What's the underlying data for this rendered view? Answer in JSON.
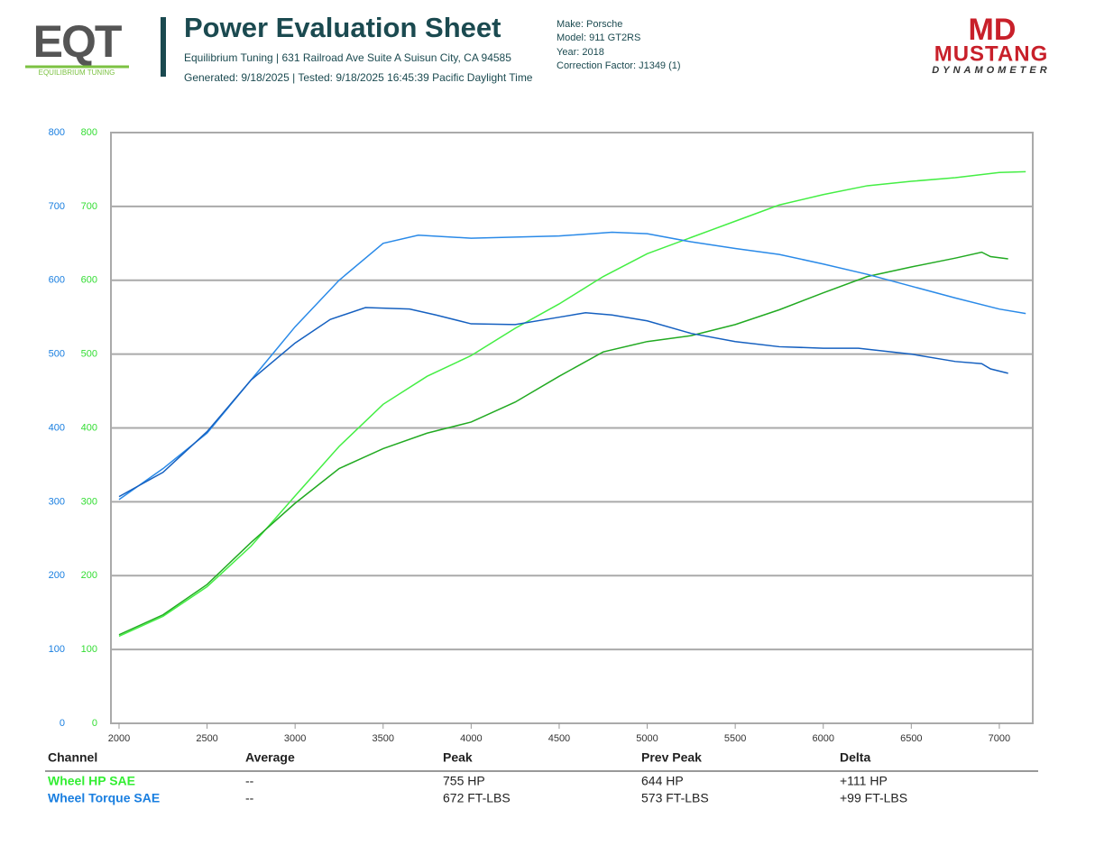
{
  "header": {
    "logo_left": "EQT",
    "logo_left_sub": "EQUILIBRIUM TUNING",
    "title": "Power Evaluation Sheet",
    "address": "Equilibrium Tuning | 631 Railroad Ave Suite A Suisun City, CA 94585",
    "generated": "Generated: 9/18/2025 | Tested: 9/18/2025 16:45:39 Pacific Daylight Time",
    "vehicle": [
      "Make: Porsche",
      "Model: 911 GT2RS",
      "Year: 2018",
      "Correction Factor: J1349 (1)"
    ],
    "logo_right": "MD",
    "logo_right_name": "MUSTANG",
    "logo_right_sub": "DYNAMOMETER"
  },
  "chart_data": {
    "type": "line",
    "xlim": [
      1954,
      7190
    ],
    "xticks": [
      2000,
      2500,
      3000,
      3500,
      4000,
      4500,
      5000,
      5500,
      6000,
      6500,
      7000
    ],
    "ylim": [
      0,
      800
    ],
    "yticks": [
      0,
      100,
      200,
      300,
      400,
      500,
      600,
      700,
      800
    ],
    "y_color": "#33dd33",
    "y2lim": [
      0,
      800
    ],
    "y2ticks": [
      0,
      100,
      200,
      300,
      400,
      500,
      600,
      700,
      800
    ],
    "y2_color": "#1a7fe0",
    "grid": true,
    "series": [
      {
        "color": "#44ee44",
        "x": [
          2000,
          2250,
          2500,
          2750,
          3000,
          3250,
          3500,
          3750,
          4000,
          4250,
          4500,
          4750,
          5000,
          5250,
          5500,
          5750,
          6000,
          6250,
          6500,
          6750,
          7000,
          7150
        ],
        "values": [
          118,
          145,
          185,
          240,
          308,
          375,
          432,
          470,
          498,
          535,
          568,
          605,
          636,
          658,
          680,
          702,
          716,
          728,
          734,
          739,
          746,
          747
        ]
      },
      {
        "color": "#22aa22",
        "x": [
          2000,
          2250,
          2500,
          2750,
          3000,
          3250,
          3500,
          3750,
          4000,
          4250,
          4500,
          4750,
          5000,
          5250,
          5500,
          5750,
          6000,
          6250,
          6500,
          6750,
          6900,
          6950,
          7050
        ],
        "values": [
          120,
          147,
          188,
          245,
          298,
          345,
          372,
          393,
          408,
          435,
          470,
          503,
          517,
          525,
          540,
          560,
          583,
          605,
          618,
          630,
          638,
          632,
          629
        ]
      },
      {
        "color": "#2a8ae8",
        "axis": "y2",
        "x": [
          2000,
          2250,
          2500,
          2750,
          3000,
          3250,
          3500,
          3700,
          4000,
          4500,
          4800,
          5000,
          5250,
          5500,
          5750,
          6000,
          6250,
          6500,
          6750,
          7000,
          7150
        ],
        "values": [
          303,
          345,
          393,
          465,
          537,
          600,
          650,
          661,
          657,
          660,
          665,
          663,
          652,
          643,
          635,
          622,
          608,
          592,
          576,
          561,
          555
        ]
      },
      {
        "color": "#1560c0",
        "axis": "y2",
        "x": [
          2000,
          2250,
          2500,
          2750,
          3000,
          3200,
          3400,
          3650,
          3800,
          4000,
          4250,
          4500,
          4650,
          4800,
          5000,
          5250,
          5500,
          5750,
          6000,
          6200,
          6500,
          6750,
          6900,
          6950,
          7050
        ],
        "values": [
          307,
          340,
          395,
          465,
          515,
          547,
          563,
          561,
          553,
          541,
          540,
          550,
          556,
          553,
          545,
          528,
          517,
          510,
          508,
          508,
          500,
          490,
          487,
          480,
          474
        ]
      }
    ]
  },
  "table": {
    "columns": [
      "Channel",
      "Average",
      "Peak",
      "Prev Peak",
      "Delta"
    ],
    "channel_colors": [
      "#33ee33",
      "#1a7fe0"
    ],
    "rows": [
      [
        "Wheel HP SAE",
        "--",
        "755 HP",
        "644 HP",
        "+111 HP"
      ],
      [
        "Wheel Torque SAE",
        "--",
        "672 FT-LBS",
        "573 FT-LBS",
        "+99 FT-LBS"
      ]
    ]
  }
}
